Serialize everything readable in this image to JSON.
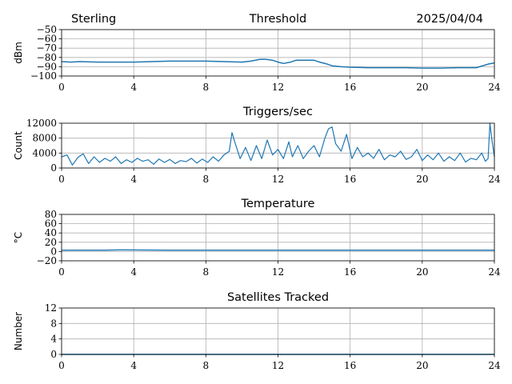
{
  "header": {
    "station": "Sterling",
    "date": "2025/04/04"
  },
  "chart_data": [
    {
      "type": "line",
      "title": "Threshold",
      "xlabel": "",
      "ylabel": "dBm",
      "xlim": [
        0,
        24
      ],
      "ylim": [
        -100,
        -50
      ],
      "xticks": [
        "0",
        "4",
        "8",
        "12",
        "16",
        "20",
        "24"
      ],
      "yticks": [
        "−50",
        "−60",
        "−70",
        "−80",
        "−90",
        "−100"
      ],
      "grid": true,
      "series": [
        {
          "name": "threshold",
          "x": [
            0,
            0.5,
            1,
            2,
            3,
            4,
            5,
            6,
            7,
            8,
            9,
            10,
            10.5,
            11,
            11.3,
            11.7,
            12,
            12.3,
            12.7,
            13,
            13.5,
            14,
            14.3,
            14.7,
            15,
            15.5,
            16,
            17,
            18,
            19,
            20,
            21,
            22,
            23,
            23.7,
            24
          ],
          "y": [
            -84.5,
            -85,
            -84.5,
            -85,
            -85,
            -85,
            -84.5,
            -84,
            -84,
            -84,
            -84.5,
            -85,
            -84,
            -82,
            -82,
            -83,
            -85,
            -86.5,
            -85,
            -83,
            -83,
            -83,
            -85,
            -87,
            -89,
            -90,
            -90.5,
            -91,
            -91,
            -91,
            -91.5,
            -91.5,
            -91,
            -91,
            -87,
            -86
          ]
        }
      ]
    },
    {
      "type": "line",
      "title": "Triggers/sec",
      "xlabel": "",
      "ylabel": "Count",
      "xlim": [
        0,
        24
      ],
      "ylim": [
        0,
        12000
      ],
      "xticks": [
        "0",
        "4",
        "8",
        "12",
        "16",
        "20",
        "24"
      ],
      "yticks": [
        "0",
        "4000",
        "8000",
        "12000"
      ],
      "grid": true,
      "series": [
        {
          "name": "triggers",
          "x": [
            0,
            0.3,
            0.6,
            0.9,
            1.2,
            1.5,
            1.8,
            2.1,
            2.4,
            2.7,
            3,
            3.3,
            3.6,
            3.9,
            4.2,
            4.5,
            4.8,
            5.1,
            5.4,
            5.7,
            6,
            6.3,
            6.6,
            6.9,
            7.2,
            7.5,
            7.8,
            8.1,
            8.4,
            8.7,
            9,
            9.3,
            9.45,
            9.6,
            9.9,
            10.2,
            10.5,
            10.8,
            11.1,
            11.4,
            11.7,
            12,
            12.3,
            12.6,
            12.8,
            13.1,
            13.4,
            13.7,
            14,
            14.3,
            14.6,
            14.8,
            15,
            15.2,
            15.5,
            15.8,
            16.1,
            16.4,
            16.7,
            17,
            17.3,
            17.6,
            17.9,
            18.2,
            18.5,
            18.8,
            19.1,
            19.4,
            19.7,
            20,
            20.3,
            20.6,
            20.9,
            21.2,
            21.5,
            21.8,
            22.1,
            22.4,
            22.7,
            23,
            23.3,
            23.5,
            23.65,
            23.75,
            23.85,
            24
          ],
          "y": [
            3000,
            3500,
            800,
            2800,
            3800,
            1200,
            3000,
            1500,
            2600,
            1800,
            3000,
            1200,
            2200,
            1500,
            2600,
            1800,
            2200,
            1000,
            2400,
            1500,
            2300,
            1200,
            2000,
            1700,
            2600,
            1300,
            2400,
            1500,
            3000,
            1800,
            3500,
            4500,
            9500,
            7000,
            2500,
            5500,
            2000,
            6000,
            2500,
            7500,
            3500,
            5000,
            2500,
            7000,
            3000,
            6000,
            2500,
            4500,
            6000,
            3000,
            8000,
            10500,
            11000,
            6500,
            4500,
            9000,
            2500,
            5500,
            3000,
            4000,
            2600,
            5000,
            2200,
            3500,
            3000,
            4500,
            2300,
            3000,
            5000,
            2000,
            3500,
            2200,
            4000,
            1800,
            3000,
            2000,
            4000,
            1600,
            2600,
            2200,
            4000,
            1800,
            2500,
            12000,
            8000,
            3000
          ]
        }
      ]
    },
    {
      "type": "line",
      "title": "Temperature",
      "xlabel": "",
      "ylabel": "°C",
      "xlim": [
        0,
        24
      ],
      "ylim": [
        -20,
        80
      ],
      "xticks": [
        "0",
        "4",
        "8",
        "12",
        "16",
        "20",
        "24"
      ],
      "yticks": [
        "80",
        "60",
        "40",
        "20",
        "0",
        "−20"
      ],
      "grid": true,
      "series": [
        {
          "name": "temperature",
          "x": [
            0,
            2.4,
            3.3,
            6,
            12,
            18,
            24
          ],
          "y": [
            3,
            3,
            3.5,
            3,
            3,
            3,
            3
          ]
        }
      ]
    },
    {
      "type": "line",
      "title": "Satellites Tracked",
      "xlabel": "",
      "ylabel": "Number",
      "xlim": [
        0,
        24
      ],
      "ylim": [
        0,
        12
      ],
      "xticks": [
        "0",
        "4",
        "8",
        "12",
        "16",
        "20",
        "24"
      ],
      "yticks": [
        "12",
        "8",
        "4",
        "0"
      ],
      "grid": true,
      "series": [
        {
          "name": "satellites",
          "x": [
            0,
            24
          ],
          "y": [
            0,
            0
          ]
        }
      ]
    }
  ]
}
